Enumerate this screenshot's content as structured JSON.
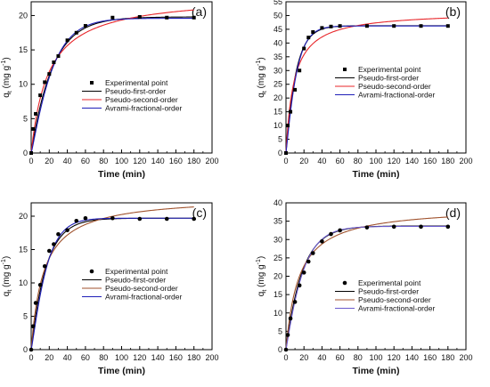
{
  "chart_data": [
    {
      "type": "line",
      "panel_label": "(a)",
      "xlabel": "Time (min)",
      "ylabel_main": "q",
      "ylabel_sub": "t",
      "ylabel_unit": " (mg g",
      "ylabel_exp": "-1",
      "ylabel_close": ")",
      "xlim": [
        0,
        200
      ],
      "ylim": [
        0,
        22
      ],
      "xticks": [
        "0",
        "20",
        "40",
        "60",
        "80",
        "100",
        "120",
        "140",
        "160",
        "180",
        "200"
      ],
      "yticks": [
        "0",
        "5",
        "10",
        "15",
        "20"
      ],
      "ytick_values": [
        0,
        5,
        10,
        15,
        20
      ],
      "legend": [
        "Experimental point",
        "Pseudo-first-order",
        "Pseudo-second-order",
        "Avrami-fractional-order"
      ],
      "marker": "square",
      "series": [
        {
          "name": "Experimental point",
          "kind": "points",
          "color": "#000000",
          "x": [
            0,
            2,
            5,
            10,
            15,
            20,
            25,
            30,
            40,
            50,
            60,
            90,
            120,
            150,
            180
          ],
          "y": [
            0,
            3.5,
            5.7,
            8.4,
            10.3,
            11.5,
            13.2,
            14.1,
            16.4,
            17.5,
            18.5,
            19.7,
            19.8,
            19.7,
            19.7
          ]
        },
        {
          "name": "Pseudo-first-order",
          "kind": "curve",
          "model": "pfo",
          "qe": 19.8,
          "k": 0.042,
          "color": "#000000"
        },
        {
          "name": "Pseudo-second-order",
          "kind": "curve",
          "model": "pso",
          "qe": 23.0,
          "k": 0.0023,
          "color": "#e8262a"
        },
        {
          "name": "Avrami-fractional-order",
          "kind": "curve",
          "model": "avrami",
          "qe": 19.6,
          "k": 0.042,
          "n": 1.12,
          "color": "#1f1fb8"
        }
      ]
    },
    {
      "type": "line",
      "panel_label": "(b)",
      "xlabel": "Time (min)",
      "ylabel_main": "q",
      "ylabel_sub": "t",
      "ylabel_unit": " (mg g",
      "ylabel_exp": "-1",
      "ylabel_close": ")",
      "xlim": [
        0,
        200
      ],
      "ylim": [
        0,
        55
      ],
      "xticks": [
        "0",
        "20",
        "40",
        "60",
        "80",
        "100",
        "120",
        "140",
        "160",
        "180",
        "200"
      ],
      "yticks": [
        "0",
        "5",
        "10",
        "15",
        "20",
        "25",
        "30",
        "35",
        "40",
        "45",
        "50",
        "55"
      ],
      "ytick_values": [
        0,
        5,
        10,
        15,
        20,
        25,
        30,
        35,
        40,
        45,
        50,
        55
      ],
      "legend": [
        "Experimental point",
        "Pseudo-first-order",
        "Pseudo-second-order",
        "Avrami-fractional-order"
      ],
      "marker": "square",
      "series": [
        {
          "name": "Experimental point",
          "kind": "points",
          "color": "#000000",
          "x": [
            0,
            2,
            5,
            10,
            15,
            20,
            25,
            30,
            40,
            50,
            60,
            90,
            120,
            150,
            180
          ],
          "y": [
            0,
            10,
            15,
            23,
            30,
            38,
            42,
            44,
            45.5,
            46,
            46.2,
            46.2,
            46.2,
            46.2,
            46.2
          ]
        },
        {
          "name": "Pseudo-first-order",
          "kind": "curve",
          "model": "pfo",
          "qe": 46.3,
          "k": 0.09,
          "color": "#000000"
        },
        {
          "name": "Pseudo-second-order",
          "kind": "curve",
          "model": "pso",
          "qe": 51.5,
          "k": 0.0022,
          "color": "#e8262a"
        },
        {
          "name": "Avrami-fractional-order",
          "kind": "curve",
          "model": "avrami",
          "qe": 46.2,
          "k": 0.085,
          "n": 1.1,
          "color": "#1f1fb8"
        }
      ]
    },
    {
      "type": "line",
      "panel_label": "(c)",
      "xlabel": "Time (min)",
      "ylabel_main": "q",
      "ylabel_sub": "t",
      "ylabel_unit": " (mg g",
      "ylabel_exp": "-1",
      "ylabel_close": ")",
      "xlim": [
        0,
        200
      ],
      "ylim": [
        0,
        22
      ],
      "xticks": [
        "0",
        "20",
        "40",
        "60",
        "80",
        "100",
        "120",
        "140",
        "160",
        "180",
        "200"
      ],
      "yticks": [
        "0",
        "5",
        "10",
        "15",
        "20"
      ],
      "ytick_values": [
        0,
        5,
        10,
        15,
        20
      ],
      "legend": [
        "Experimental point",
        "Pseudo-first-order",
        "Pseudo-second-order",
        "Avrami-fractional-order"
      ],
      "marker": "circle",
      "series": [
        {
          "name": "Experimental point",
          "kind": "points",
          "color": "#000000",
          "x": [
            0,
            2,
            5,
            10,
            15,
            20,
            25,
            30,
            40,
            50,
            60,
            90,
            120,
            150,
            180
          ],
          "y": [
            0,
            3.5,
            7,
            9.7,
            12.5,
            14.8,
            15.8,
            17.3,
            17.9,
            19.3,
            19.7,
            19.7,
            19.6,
            19.6,
            19.6
          ]
        },
        {
          "name": "Pseudo-first-order",
          "kind": "curve",
          "model": "pfo",
          "qe": 19.7,
          "k": 0.06,
          "color": "#000000"
        },
        {
          "name": "Pseudo-second-order",
          "kind": "curve",
          "model": "pso",
          "qe": 23.0,
          "k": 0.0032,
          "color": "#a0522d"
        },
        {
          "name": "Avrami-fractional-order",
          "kind": "curve",
          "model": "avrami",
          "qe": 19.7,
          "k": 0.058,
          "n": 1.15,
          "color": "#1f1fb8"
        }
      ]
    },
    {
      "type": "line",
      "panel_label": "(d)",
      "xlabel": "Time (min)",
      "ylabel_main": "q",
      "ylabel_sub": "t",
      "ylabel_unit": " (mg g",
      "ylabel_exp": "-1",
      "ylabel_close": ")",
      "xlim": [
        0,
        200
      ],
      "ylim": [
        0,
        40
      ],
      "xticks": [
        "0",
        "20",
        "40",
        "60",
        "80",
        "100",
        "120",
        "140",
        "160",
        "180",
        "200"
      ],
      "yticks": [
        "0",
        "5",
        "10",
        "15",
        "20",
        "25",
        "30",
        "35",
        "40"
      ],
      "ytick_values": [
        0,
        5,
        10,
        15,
        20,
        25,
        30,
        35,
        40
      ],
      "legend": [
        "Experimental point",
        "Pseudo-first-order",
        "Pseudo-second-order",
        "Avrami-fractional-order"
      ],
      "marker": "circle",
      "series": [
        {
          "name": "Experimental point",
          "kind": "points",
          "color": "#000000",
          "x": [
            0,
            2,
            5,
            10,
            15,
            20,
            25,
            30,
            40,
            50,
            60,
            90,
            120,
            150,
            180
          ],
          "y": [
            0,
            4,
            8.5,
            13,
            17.5,
            21,
            24,
            26.3,
            29.5,
            31.5,
            32.5,
            33.3,
            33.5,
            33.5,
            33.5
          ]
        },
        {
          "name": "Pseudo-first-order",
          "kind": "curve",
          "model": "pfo",
          "qe": 33.7,
          "k": 0.055,
          "color": "#000000"
        },
        {
          "name": "Pseudo-second-order",
          "kind": "curve",
          "model": "pso",
          "qe": 39.0,
          "k": 0.0018,
          "color": "#a0522d"
        },
        {
          "name": "Avrami-fractional-order",
          "kind": "curve",
          "model": "avrami",
          "qe": 33.6,
          "k": 0.053,
          "n": 1.08,
          "color": "#6a5acd"
        }
      ]
    }
  ]
}
